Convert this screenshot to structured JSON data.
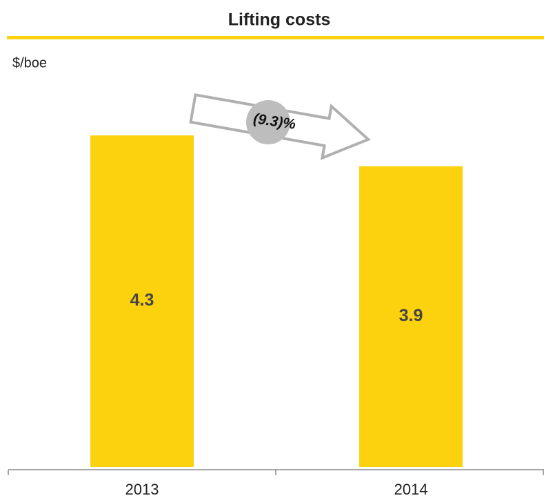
{
  "chart_data": {
    "type": "bar",
    "title": "Lifting costs",
    "unit_label": "$/boe",
    "categories": [
      "2013",
      "2014"
    ],
    "values": [
      4.3,
      3.9
    ],
    "color": "#fcd20f",
    "annotation": "(9.3)%"
  }
}
